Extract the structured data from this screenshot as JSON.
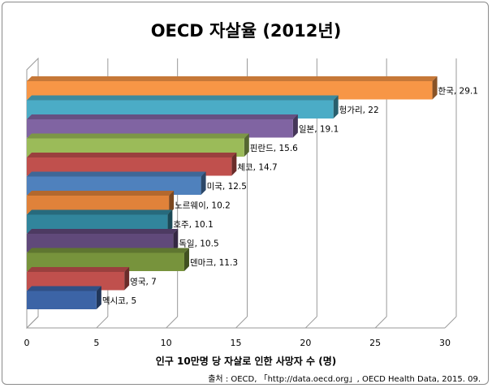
{
  "chart_data": {
    "type": "bar",
    "orientation": "horizontal",
    "title": "OECD 자살율 (2012년)",
    "xlabel": "인구 10만명 당 자살로 인한 사망자 수 (명)",
    "xlim": [
      0,
      30
    ],
    "xticks": [
      0,
      5,
      10,
      15,
      20,
      25,
      30
    ],
    "grid": true,
    "categories": [
      "한국",
      "헝가리",
      "일본",
      "핀란드",
      "체코",
      "미국",
      "노르웨이",
      "호주",
      "독일",
      "덴마크",
      "영국",
      "멕시코"
    ],
    "values": [
      29.1,
      22,
      19.1,
      15.6,
      14.7,
      12.5,
      10.2,
      10.1,
      10.5,
      11.3,
      7,
      5
    ],
    "labels": [
      "한국, 29.1",
      "헝가리, 22",
      "일본, 19.1",
      "핀란드, 15.6",
      "체코, 14.7",
      "미국, 12.5",
      "노르웨이, 10.2",
      "호주, 10.1",
      "독일, 10.5",
      "덴마크, 11.3",
      "영국, 7",
      "멕시코, 5"
    ],
    "colors": [
      "#f79646",
      "#4bacc6",
      "#8064a2",
      "#9bbb59",
      "#c0504d",
      "#4f81bd",
      "#e0823a",
      "#31859c",
      "#60497a",
      "#77933c",
      "#c0504d",
      "#3c64a6"
    ],
    "source": "출처 : OECD, 「http://data.oecd.org」, OECD Health Data, 2015. 09."
  }
}
